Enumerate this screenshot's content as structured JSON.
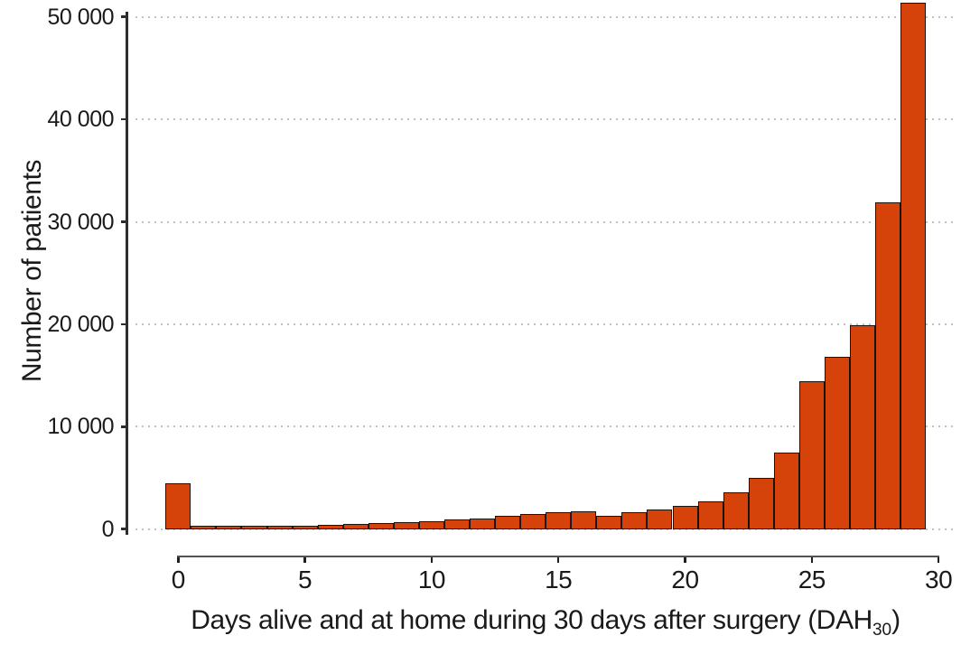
{
  "chart_data": {
    "type": "bar",
    "subtype": "histogram",
    "title": "",
    "ylabel": "Number of patients",
    "xlabel": {
      "main": "Days alive and at home during 30 days after surgery (DAH",
      "sub": "30",
      "end": ")"
    },
    "categories": [
      0,
      1,
      2,
      3,
      4,
      5,
      6,
      7,
      8,
      9,
      10,
      11,
      12,
      13,
      14,
      15,
      16,
      17,
      18,
      19,
      20,
      21,
      22,
      23,
      24,
      25,
      26,
      27,
      28,
      29
    ],
    "values": [
      4500,
      200,
      220,
      250,
      330,
      340,
      420,
      560,
      620,
      720,
      790,
      940,
      1030,
      1320,
      1530,
      1650,
      1800,
      1350,
      1650,
      1900,
      2300,
      2700,
      3600,
      5000,
      7500,
      14500,
      16800,
      19900,
      31900,
      51400
    ],
    "x_ticks": {
      "positions": [
        0,
        5,
        10,
        15,
        20,
        25,
        30
      ],
      "labels": [
        "0",
        "5",
        "10",
        "15",
        "20",
        "25",
        "30"
      ]
    },
    "y_ticks": {
      "positions": [
        0,
        10000,
        20000,
        30000,
        40000,
        50000
      ],
      "labels": [
        "0",
        "10 000",
        "20 000",
        "30 000",
        "40 000",
        "50 000"
      ]
    },
    "ylim": [
      0,
      51500
    ],
    "xlim": [
      -0.5,
      30
    ],
    "grid": "horizontal-dotted",
    "legend": "none",
    "bar_color": "#d5420a",
    "bar_border_color": "#1a140e",
    "axis_color": "#2d2d2d",
    "grid_color": "#c2c2c2",
    "text_color": "#1a1a1a"
  }
}
